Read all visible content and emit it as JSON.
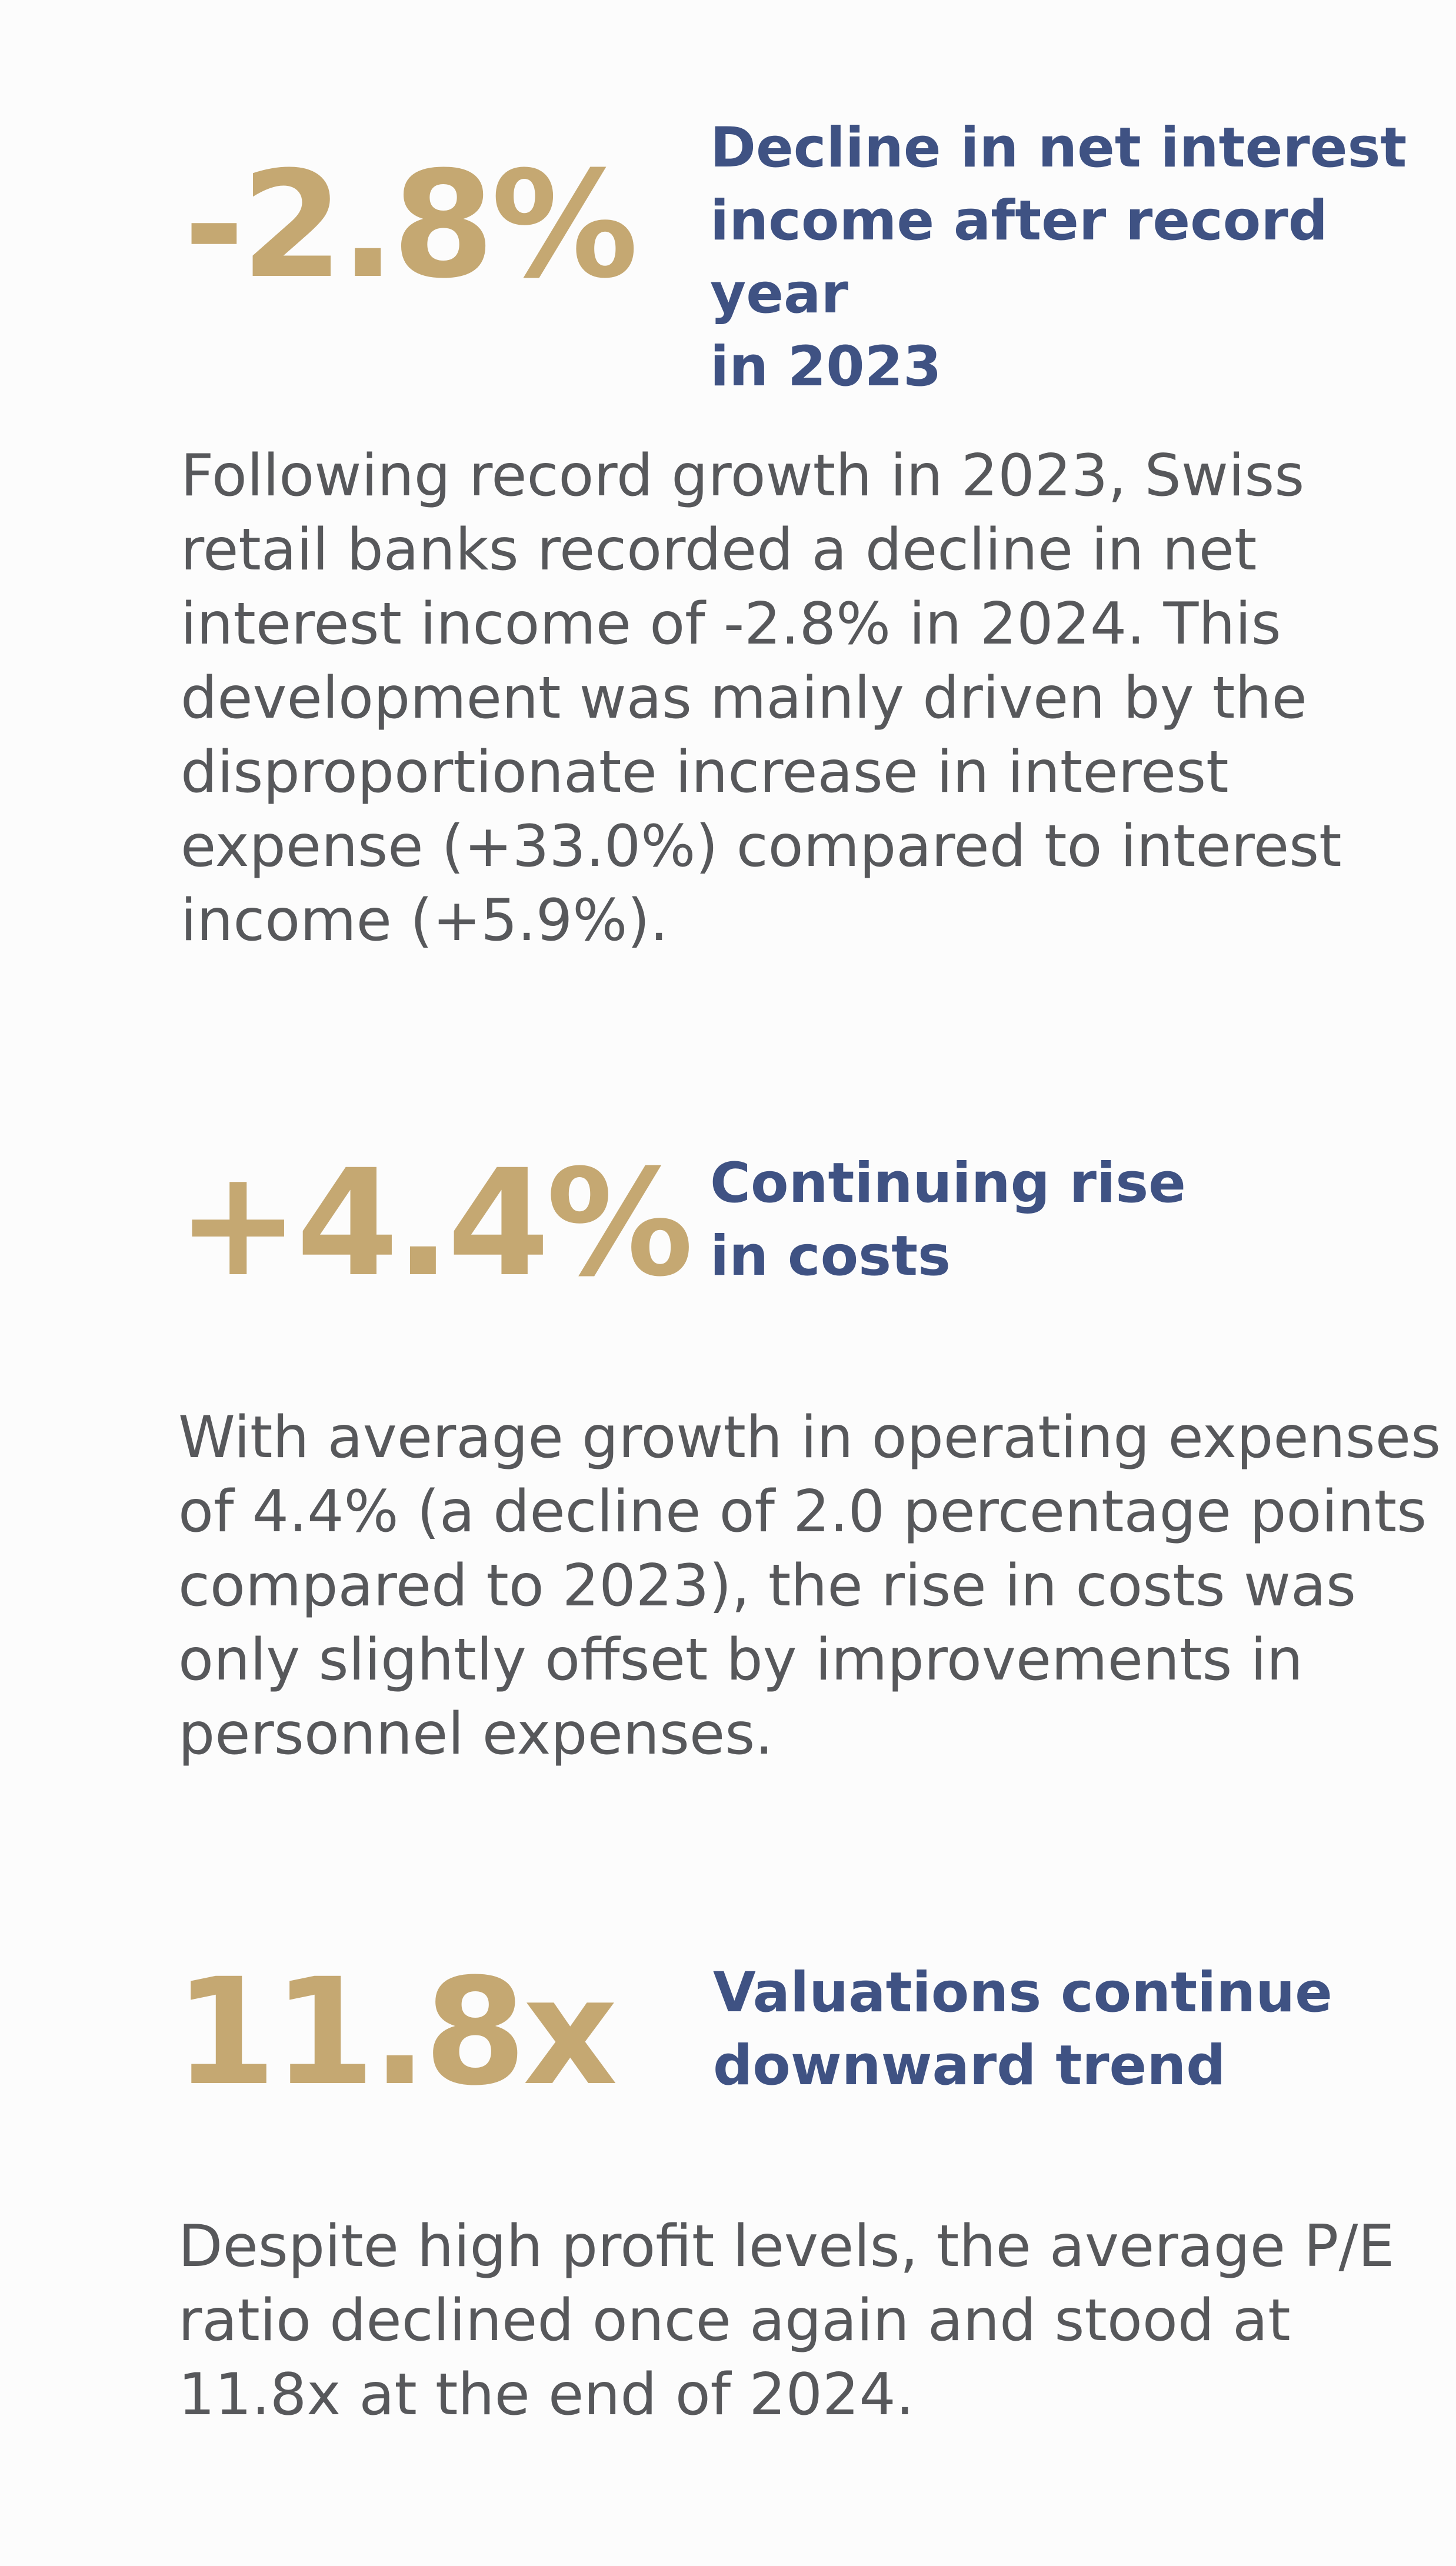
{
  "blocks": [
    {
      "metric": "-2.8%",
      "headline": "Decline in net interest\nincome after record year\nin 2023",
      "body": "Following record growth in 2023, Swiss\nretail banks recorded a decline in net\ninterest income of -2.8% in 2024. This\ndevelopment was mainly driven by the\ndisproportionate increase in interest\nexpense (+33.0%) compared to interest\nincome (+5.9%)."
    },
    {
      "metric": "+4.4%",
      "headline": "Continuing rise\nin costs",
      "body": "With average growth in operating expenses\nof 4.4% (a decline of 2.0 percentage points\ncompared to 2023), the rise in costs was\nonly slightly offset by improvements in\npersonnel expenses."
    },
    {
      "metric": "11.8x",
      "headline": "Valuations continue\ndownward trend",
      "body": "Despite high profit levels, the average P/E\nratio declined once again and stood at\n11.8x at the end of 2024."
    }
  ],
  "colors": {
    "metric": "#c5a872",
    "headline": "#3f5283",
    "body": "#57585b",
    "background": "#fcfcfc"
  }
}
